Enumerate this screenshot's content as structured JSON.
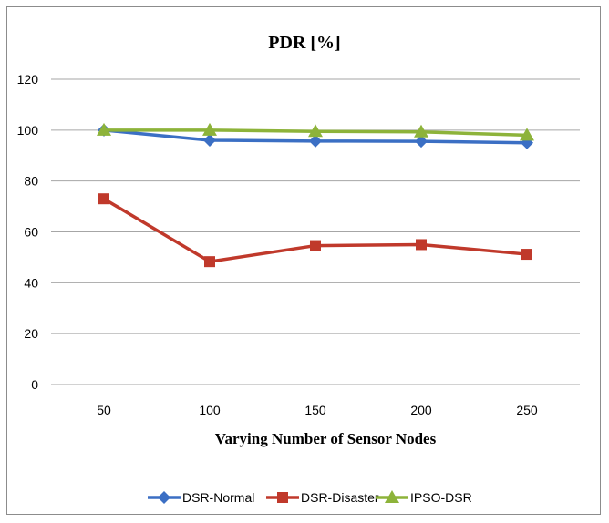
{
  "chart_data": {
    "type": "line",
    "title": "PDR [%]",
    "xlabel": "Varying Number of Sensor Nodes",
    "ylabel": "",
    "categories": [
      "50",
      "100",
      "150",
      "200",
      "250"
    ],
    "ylim": [
      0,
      120
    ],
    "yticks": [
      "0",
      "20",
      "40",
      "60",
      "80",
      "100",
      "120"
    ],
    "grid": true,
    "legend_position": "bottom",
    "series": [
      {
        "name": "DSR-Normal",
        "values": [
          100,
          96,
          95.7,
          95.6,
          95
        ],
        "color": "#3b6fc4",
        "marker": "diamond"
      },
      {
        "name": "DSR-Disaster",
        "values": [
          73,
          48.3,
          54.6,
          55,
          51.2
        ],
        "color": "#c0392b",
        "marker": "square"
      },
      {
        "name": "IPSO-DSR",
        "values": [
          100,
          100,
          99.5,
          99.3,
          98
        ],
        "color": "#8db33a",
        "marker": "triangle"
      }
    ]
  }
}
